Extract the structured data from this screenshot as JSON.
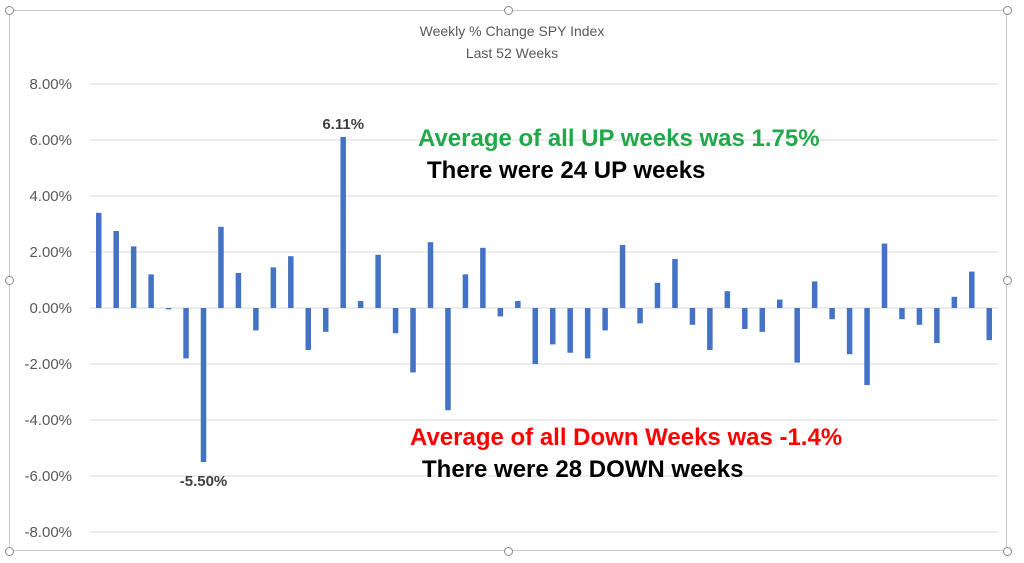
{
  "chart_data": {
    "type": "bar",
    "title": "Weekly % Change SPY Index",
    "subtitle": "Last 52 Weeks",
    "xlabel": "",
    "ylabel": "",
    "ylim": [
      -8,
      8
    ],
    "yticks": [
      "8.00%",
      "6.00%",
      "4.00%",
      "2.00%",
      "0.00%",
      "-2.00%",
      "-4.00%",
      "-6.00%",
      "-8.00%"
    ],
    "grid": true,
    "legend": "none",
    "bar_color": "#4472c4",
    "values": [
      3.4,
      2.75,
      2.2,
      1.2,
      -0.05,
      -1.8,
      -5.5,
      2.9,
      1.25,
      -0.8,
      1.45,
      1.85,
      -1.5,
      -0.85,
      6.11,
      0.25,
      1.9,
      -0.9,
      -2.3,
      2.35,
      -3.65,
      1.2,
      2.15,
      -0.3,
      0.25,
      -2.0,
      -1.3,
      -1.6,
      -1.8,
      -0.8,
      2.25,
      -0.55,
      0.9,
      1.75,
      -0.6,
      -1.5,
      0.6,
      -0.75,
      -0.85,
      0.3,
      -1.95,
      0.95,
      -0.4,
      -1.65,
      -2.75,
      2.3,
      -0.4,
      -0.6,
      -1.25,
      0.4,
      1.3,
      -1.15
    ],
    "data_labels": [
      {
        "index": 14,
        "text": "6.11%"
      },
      {
        "index": 6,
        "text": "-5.50%"
      }
    ]
  },
  "annotations": {
    "up_average": {
      "text": "Average of all UP weeks was 1.75%",
      "color": "#21a84a"
    },
    "up_count": {
      "text": "There were 24 UP weeks",
      "color": "#000000"
    },
    "down_average": {
      "text": "Average of all Down Weeks was -1.4%",
      "color": "#ff0000"
    },
    "down_count": {
      "text": "There were 28 DOWN weeks",
      "color": "#000000"
    }
  }
}
